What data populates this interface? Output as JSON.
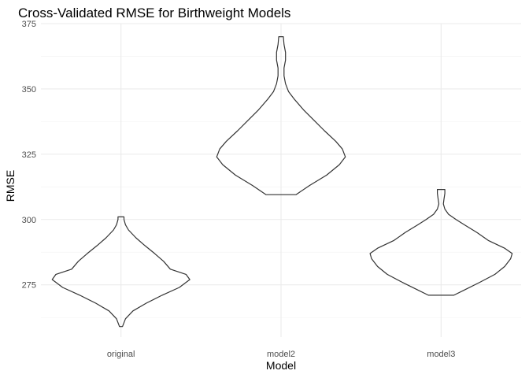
{
  "chart_data": {
    "type": "violin",
    "title": "Cross-Validated RMSE for Birthweight Models",
    "xlabel": "Model",
    "ylabel": "RMSE",
    "ylim": [
      255,
      375
    ],
    "y_ticks": [
      275,
      300,
      325,
      350,
      375
    ],
    "grid": true,
    "categories": [
      "original",
      "model2",
      "model3"
    ],
    "series": [
      {
        "category": "original",
        "min": 259,
        "max": 301,
        "profile": [
          [
            259,
            0.02
          ],
          [
            262,
            0.06
          ],
          [
            265,
            0.16
          ],
          [
            268,
            0.34
          ],
          [
            271,
            0.55
          ],
          [
            274,
            0.78
          ],
          [
            277,
            0.92
          ],
          [
            279,
            0.87
          ],
          [
            281,
            0.66
          ],
          [
            284,
            0.57
          ],
          [
            287,
            0.45
          ],
          [
            290,
            0.32
          ],
          [
            293,
            0.2
          ],
          [
            296,
            0.1
          ],
          [
            298,
            0.06
          ],
          [
            300,
            0.04
          ],
          [
            301,
            0.04
          ]
        ]
      },
      {
        "category": "model2",
        "min": 309.5,
        "max": 370,
        "profile": [
          [
            309.5,
            0.2
          ],
          [
            313,
            0.38
          ],
          [
            317,
            0.61
          ],
          [
            321,
            0.78
          ],
          [
            324,
            0.86
          ],
          [
            327,
            0.82
          ],
          [
            330,
            0.73
          ],
          [
            334,
            0.58
          ],
          [
            338,
            0.44
          ],
          [
            342,
            0.3
          ],
          [
            346,
            0.18
          ],
          [
            349,
            0.1
          ],
          [
            352,
            0.06
          ],
          [
            355,
            0.04
          ],
          [
            358,
            0.04
          ],
          [
            361,
            0.06
          ],
          [
            364,
            0.06
          ],
          [
            367,
            0.04
          ],
          [
            370,
            0.03
          ]
        ]
      },
      {
        "category": "model3",
        "min": 271,
        "max": 311.5,
        "profile": [
          [
            271,
            0.17
          ],
          [
            273,
            0.31
          ],
          [
            276,
            0.52
          ],
          [
            279,
            0.72
          ],
          [
            282,
            0.85
          ],
          [
            285,
            0.93
          ],
          [
            287,
            0.95
          ],
          [
            289,
            0.85
          ],
          [
            292,
            0.63
          ],
          [
            295,
            0.48
          ],
          [
            298,
            0.31
          ],
          [
            300,
            0.2
          ],
          [
            302,
            0.1
          ],
          [
            304,
            0.05
          ],
          [
            306,
            0.03
          ],
          [
            308,
            0.04
          ],
          [
            310,
            0.05
          ],
          [
            311.5,
            0.05
          ]
        ]
      }
    ]
  }
}
